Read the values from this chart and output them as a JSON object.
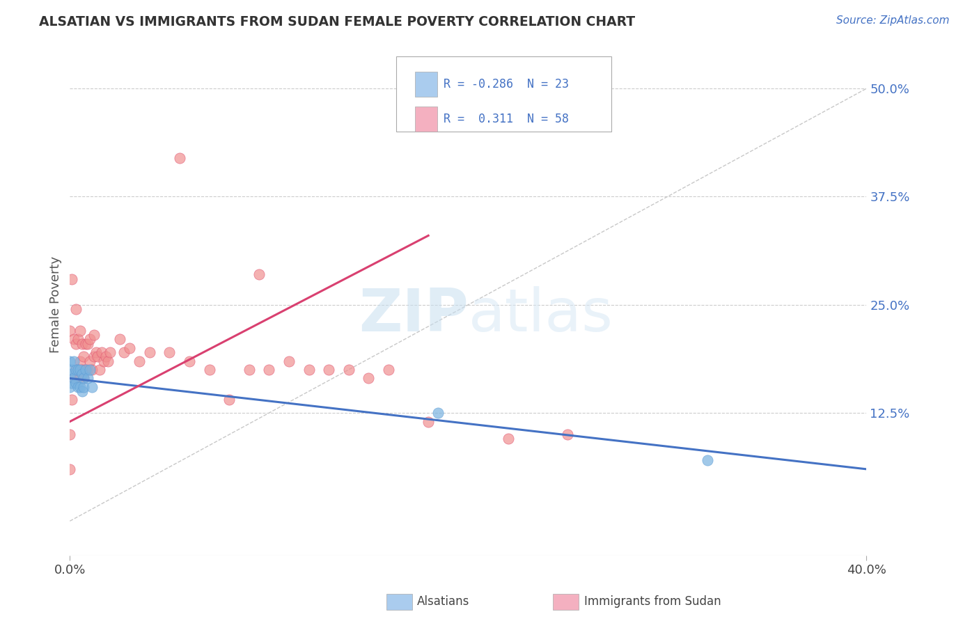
{
  "title": "ALSATIAN VS IMMIGRANTS FROM SUDAN FEMALE POVERTY CORRELATION CHART",
  "source": "Source: ZipAtlas.com",
  "ylabel": "Female Poverty",
  "right_yticks": [
    "50.0%",
    "37.5%",
    "25.0%",
    "12.5%"
  ],
  "right_ytick_vals": [
    0.5,
    0.375,
    0.25,
    0.125
  ],
  "xlim": [
    0.0,
    0.4
  ],
  "ylim": [
    -0.04,
    0.54
  ],
  "alsatian_color": "#7ab3e0",
  "alsatian_edge": "#5b9bd5",
  "sudan_color": "#f09090",
  "sudan_edge": "#e05070",
  "alsatian_line_color": "#4472c4",
  "sudan_line_color": "#d94070",
  "diagonal_color": "#c8c8c8",
  "background_color": "#ffffff",
  "legend_sq_als": "#aaccee",
  "legend_sq_sud": "#f4b0c0",
  "alsatian_points_x": [
    0.0,
    0.0,
    0.0,
    0.001,
    0.001,
    0.002,
    0.002,
    0.003,
    0.003,
    0.004,
    0.004,
    0.005,
    0.005,
    0.006,
    0.006,
    0.007,
    0.007,
    0.008,
    0.009,
    0.01,
    0.011,
    0.185,
    0.32
  ],
  "alsatian_points_y": [
    0.155,
    0.17,
    0.185,
    0.16,
    0.175,
    0.165,
    0.185,
    0.16,
    0.175,
    0.155,
    0.175,
    0.155,
    0.175,
    0.15,
    0.17,
    0.155,
    0.165,
    0.175,
    0.165,
    0.175,
    0.155,
    0.125,
    0.07
  ],
  "sudan_points_x": [
    0.0,
    0.0,
    0.0,
    0.001,
    0.001,
    0.002,
    0.002,
    0.003,
    0.003,
    0.003,
    0.004,
    0.004,
    0.005,
    0.005,
    0.005,
    0.006,
    0.006,
    0.007,
    0.007,
    0.008,
    0.008,
    0.009,
    0.009,
    0.01,
    0.01,
    0.011,
    0.012,
    0.012,
    0.013,
    0.014,
    0.015,
    0.016,
    0.017,
    0.018,
    0.019,
    0.02,
    0.025,
    0.027,
    0.03,
    0.035,
    0.04,
    0.05,
    0.055,
    0.06,
    0.07,
    0.08,
    0.09,
    0.095,
    0.1,
    0.11,
    0.12,
    0.13,
    0.14,
    0.15,
    0.16,
    0.18,
    0.22,
    0.25
  ],
  "sudan_points_y": [
    0.06,
    0.1,
    0.22,
    0.14,
    0.28,
    0.165,
    0.21,
    0.175,
    0.205,
    0.245,
    0.175,
    0.21,
    0.165,
    0.185,
    0.22,
    0.175,
    0.205,
    0.165,
    0.19,
    0.175,
    0.205,
    0.175,
    0.205,
    0.185,
    0.21,
    0.175,
    0.19,
    0.215,
    0.195,
    0.19,
    0.175,
    0.195,
    0.185,
    0.19,
    0.185,
    0.195,
    0.21,
    0.195,
    0.2,
    0.185,
    0.195,
    0.195,
    0.42,
    0.185,
    0.175,
    0.14,
    0.175,
    0.285,
    0.175,
    0.185,
    0.175,
    0.175,
    0.175,
    0.165,
    0.175,
    0.115,
    0.095,
    0.1
  ],
  "als_line_x0": 0.0,
  "als_line_x1": 0.4,
  "als_line_y0": 0.165,
  "als_line_y1": 0.06,
  "sud_line_x0": 0.0,
  "sud_line_x1": 0.18,
  "sud_line_y0": 0.115,
  "sud_line_y1": 0.33
}
